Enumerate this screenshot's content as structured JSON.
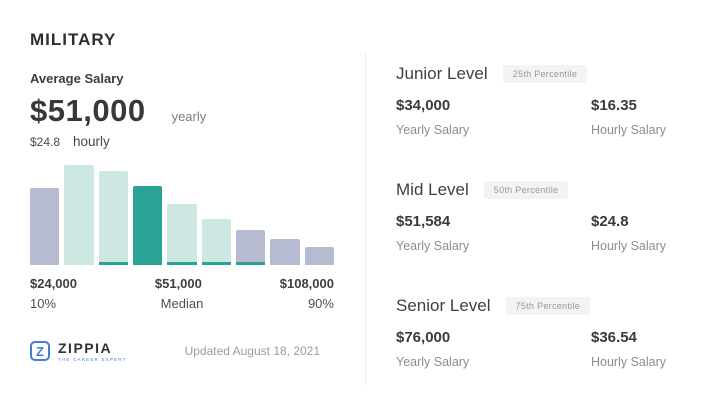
{
  "header": {
    "title": "MILITARY",
    "average_salary_label": "Average Salary",
    "yearly_value": "$51,000",
    "yearly_unit": "yearly",
    "hourly_value": "$24.8",
    "hourly_unit": "hourly"
  },
  "chart_data": {
    "type": "bar",
    "title": "Military salary distribution histogram",
    "ylim": [
      0,
      100
    ],
    "grid": false,
    "legend": false,
    "highlight": "4th bar (median salary bucket) shown in teal",
    "bars": [
      {
        "rel_height": 77,
        "color_key": "lavender",
        "base_strip": false
      },
      {
        "rel_height": 100,
        "color_key": "mint",
        "base_strip": false
      },
      {
        "rel_height": 94,
        "color_key": "mint",
        "base_strip": true
      },
      {
        "rel_height": 79,
        "color_key": "teal",
        "base_strip": false
      },
      {
        "rel_height": 61,
        "color_key": "mint",
        "base_strip": true
      },
      {
        "rel_height": 46,
        "color_key": "mint",
        "base_strip": true
      },
      {
        "rel_height": 35,
        "color_key": "lavender",
        "base_strip": true
      },
      {
        "rel_height": 26,
        "color_key": "lavender",
        "base_strip": false
      },
      {
        "rel_height": 18,
        "color_key": "lavender",
        "base_strip": false
      }
    ],
    "colors": {
      "lavender": "#b6bbd2",
      "mint": "#cde7e2",
      "teal": "#2aa296",
      "strip": "#2aa296"
    },
    "x_axis": {
      "left": {
        "value": "$24,000",
        "label": "10%"
      },
      "middle": {
        "value": "$51,000",
        "label": "Median"
      },
      "right": {
        "value": "$108,000",
        "label": "90%"
      }
    }
  },
  "axis": {
    "left_value": "$24,000",
    "left_sub": "10%",
    "mid_value": "$51,000",
    "mid_sub": "Median",
    "right_value": "$108,000",
    "right_sub": "90%"
  },
  "footer": {
    "logo_letter": "Z",
    "brand": "ZIPPIA",
    "tagline": "THE CAREER EXPERT",
    "updated": "Updated August 18, 2021"
  },
  "levels": [
    {
      "name": "Junior Level",
      "badge": "25th Percentile",
      "yearly": "$34,000",
      "yearly_label": "Yearly Salary",
      "hourly": "$16.35",
      "hourly_label": "Hourly Salary"
    },
    {
      "name": "Mid Level",
      "badge": "50th Percentile",
      "yearly": "$51,584",
      "yearly_label": "Yearly Salary",
      "hourly": "$24.8",
      "hourly_label": "Hourly Salary"
    },
    {
      "name": "Senior Level",
      "badge": "75th Percentile",
      "yearly": "$76,000",
      "yearly_label": "Yearly Salary",
      "hourly": "$36.54",
      "hourly_label": "Hourly Salary"
    }
  ],
  "colors": {
    "accent_teal": "#2aa296",
    "lavender": "#b6bbd2",
    "mint": "#cde7e2",
    "brand_blue": "#4a79d9",
    "divider": "#ececec"
  }
}
